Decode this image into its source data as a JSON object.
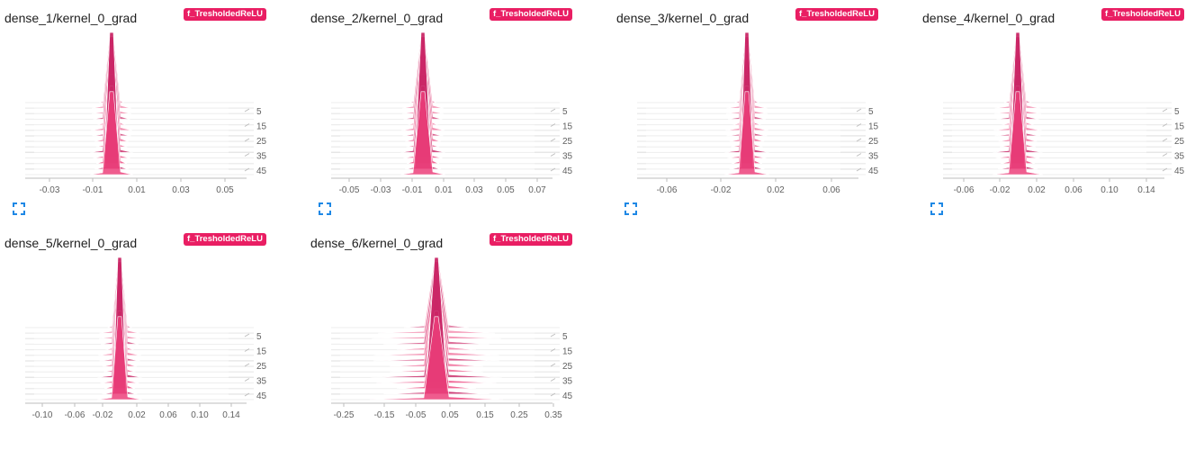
{
  "theme": {
    "accent": "#e91e63",
    "icon_blue": "#1e88e5",
    "ridge_dark": "#c2185b",
    "ridge_mid": "#ec407a",
    "ridge_light": "#f8bbd0"
  },
  "cards": [
    {
      "title": "dense_1/kernel_0_grad",
      "tag": "f_TresholdedReLU",
      "x_ticks": [
        "-0.03",
        "-0.01",
        "0.01",
        "0.03",
        "0.05"
      ],
      "y_ticks": [
        "5",
        "15",
        "25",
        "35",
        "45"
      ],
      "has_expand": true
    },
    {
      "title": "dense_2/kernel_0_grad",
      "tag": "f_TresholdedReLU",
      "x_ticks": [
        "-0.05",
        "-0.03",
        "-0.01",
        "0.01",
        "0.03",
        "0.05",
        "0.07"
      ],
      "y_ticks": [
        "5",
        "15",
        "25",
        "35",
        "45"
      ],
      "has_expand": true
    },
    {
      "title": "dense_3/kernel_0_grad",
      "tag": "f_TresholdedReLU",
      "x_ticks": [
        "-0.06",
        "-0.02",
        "0.02",
        "0.06"
      ],
      "y_ticks": [
        "5",
        "15",
        "25",
        "35",
        "45"
      ],
      "has_expand": true
    },
    {
      "title": "dense_4/kernel_0_grad",
      "tag": "f_TresholdedReLU",
      "x_ticks": [
        "-0.06",
        "-0.02",
        "0.02",
        "0.06",
        "0.10",
        "0.14"
      ],
      "y_ticks": [
        "5",
        "15",
        "25",
        "35",
        "45"
      ],
      "has_expand": true
    },
    {
      "title": "dense_5/kernel_0_grad",
      "tag": "f_TresholdedReLU",
      "x_ticks": [
        "-0.10",
        "-0.06",
        "-0.02",
        "0.02",
        "0.06",
        "0.10",
        "0.14"
      ],
      "y_ticks": [
        "5",
        "15",
        "25",
        "35",
        "45"
      ],
      "has_expand": false
    },
    {
      "title": "dense_6/kernel_0_grad",
      "tag": "f_TresholdedReLU",
      "x_ticks": [
        "-0.25",
        "-0.15",
        "-0.05",
        "0.05",
        "0.15",
        "0.25",
        "0.35"
      ],
      "y_ticks": [
        "5",
        "15",
        "25",
        "35",
        "45"
      ],
      "has_expand": false
    }
  ]
}
